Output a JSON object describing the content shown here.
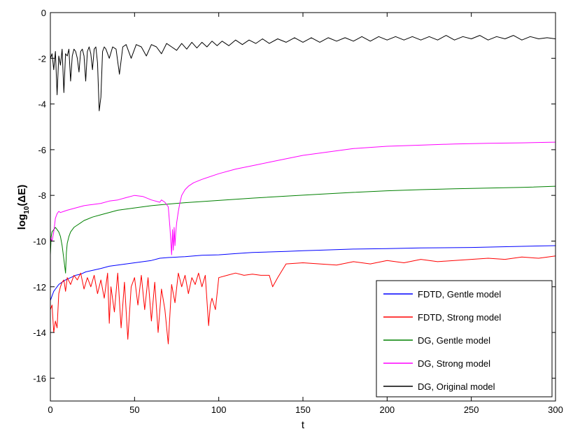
{
  "chart_data": {
    "type": "line",
    "title": "",
    "xlabel": "t",
    "ylabel_main": "log",
    "ylabel_sub": "10",
    "ylabel_paren": "(ΔE)",
    "xlim": [
      0,
      300
    ],
    "ylim": [
      -17,
      0
    ],
    "xticks": [
      0,
      50,
      100,
      150,
      200,
      250,
      300
    ],
    "yticks": [
      0,
      -2,
      -4,
      -6,
      -8,
      -10,
      -12,
      -14,
      -16
    ],
    "grid": false,
    "legend_position": "bottom-right",
    "series": [
      {
        "name": "FDTD, Gentle model",
        "color": "#0000ff",
        "x": [
          0,
          1,
          2,
          3,
          4,
          5,
          7,
          9,
          12,
          15,
          18,
          21,
          24,
          27,
          30,
          35,
          40,
          45,
          50,
          60,
          65,
          70,
          80,
          90,
          100,
          110,
          120,
          140,
          150,
          160,
          180,
          200,
          220,
          250,
          280,
          300
        ],
        "y": [
          -12.6,
          -12.4,
          -12.2,
          -12.1,
          -12.0,
          -11.9,
          -11.8,
          -11.7,
          -11.6,
          -11.5,
          -11.45,
          -11.35,
          -11.3,
          -11.25,
          -11.2,
          -11.1,
          -11.05,
          -11.0,
          -10.95,
          -10.85,
          -10.75,
          -10.72,
          -10.68,
          -10.62,
          -10.6,
          -10.55,
          -10.5,
          -10.45,
          -10.42,
          -10.4,
          -10.35,
          -10.33,
          -10.3,
          -10.28,
          -10.23,
          -10.2
        ]
      },
      {
        "name": "FDTD, Strong model",
        "color": "#ff0000",
        "x": [
          0,
          1,
          2,
          3,
          4,
          5,
          6,
          7,
          8,
          9,
          10,
          12,
          14,
          16,
          18,
          20,
          22,
          24,
          26,
          28,
          30,
          32,
          34,
          35,
          36,
          38,
          40,
          42,
          44,
          46,
          48,
          50,
          52,
          54,
          56,
          58,
          60,
          62,
          64,
          66,
          68,
          70,
          72,
          74,
          76,
          78,
          80,
          82,
          84,
          86,
          88,
          90,
          92,
          94,
          95,
          96,
          98,
          100,
          105,
          110,
          115,
          120,
          125,
          130,
          132,
          135,
          140,
          150,
          160,
          170,
          180,
          190,
          200,
          210,
          220,
          230,
          240,
          250,
          260,
          270,
          280,
          290,
          300
        ],
        "y": [
          -13.0,
          -12.8,
          -14.0,
          -13.5,
          -13.8,
          -12.3,
          -12.0,
          -11.8,
          -11.7,
          -12.2,
          -11.6,
          -11.9,
          -11.5,
          -11.7,
          -11.4,
          -12.1,
          -11.6,
          -12.0,
          -11.5,
          -12.3,
          -11.7,
          -12.5,
          -11.4,
          -13.6,
          -12.0,
          -13.1,
          -11.4,
          -13.8,
          -11.8,
          -14.3,
          -12.0,
          -11.6,
          -12.8,
          -11.5,
          -13.0,
          -11.6,
          -13.5,
          -11.8,
          -14.0,
          -12.1,
          -13.0,
          -14.5,
          -11.9,
          -12.7,
          -11.4,
          -12.0,
          -11.5,
          -12.3,
          -11.6,
          -11.9,
          -11.4,
          -12.0,
          -11.5,
          -13.7,
          -12.8,
          -12.5,
          -13.0,
          -11.6,
          -11.5,
          -11.4,
          -11.5,
          -11.45,
          -11.5,
          -11.5,
          -12.0,
          -11.6,
          -11.0,
          -10.95,
          -11.0,
          -11.05,
          -10.9,
          -11.0,
          -10.85,
          -10.95,
          -10.8,
          -10.9,
          -10.85,
          -10.8,
          -10.75,
          -10.8,
          -10.7,
          -10.75,
          -10.65
        ]
      },
      {
        "name": "DG, Gentle model",
        "color": "#008000",
        "x": [
          0,
          0.5,
          1,
          2,
          3,
          4,
          5,
          6,
          7,
          8,
          9,
          9.5,
          10,
          11,
          12,
          14,
          16,
          18,
          20,
          25,
          30,
          40,
          50,
          60,
          70,
          80,
          90,
          100,
          120,
          140,
          160,
          180,
          200,
          220,
          240,
          260,
          280,
          300
        ],
        "y": [
          -10.6,
          -9.8,
          -9.6,
          -9.5,
          -9.4,
          -9.5,
          -9.6,
          -9.8,
          -10.2,
          -10.8,
          -11.4,
          -10.5,
          -10.1,
          -9.8,
          -9.6,
          -9.4,
          -9.3,
          -9.2,
          -9.1,
          -8.95,
          -8.85,
          -8.65,
          -8.55,
          -8.45,
          -8.38,
          -8.32,
          -8.27,
          -8.22,
          -8.12,
          -8.03,
          -7.95,
          -7.87,
          -7.8,
          -7.75,
          -7.71,
          -7.68,
          -7.65,
          -7.6
        ]
      },
      {
        "name": "DG, Strong model",
        "color": "#ff00ff",
        "x": [
          0,
          1,
          2,
          3,
          4,
          5,
          6,
          8,
          10,
          15,
          20,
          25,
          30,
          35,
          40,
          45,
          50,
          55,
          60,
          65,
          66,
          68,
          70,
          71,
          72,
          72.5,
          73,
          73.5,
          74,
          74.5,
          75,
          76,
          77,
          78,
          80,
          82,
          85,
          90,
          100,
          110,
          120,
          130,
          140,
          150,
          160,
          170,
          180,
          190,
          200,
          220,
          240,
          260,
          280,
          300
        ],
        "y": [
          -9.8,
          -10.0,
          -9.6,
          -9.0,
          -8.8,
          -8.7,
          -8.75,
          -8.7,
          -8.65,
          -8.55,
          -8.45,
          -8.4,
          -8.35,
          -8.25,
          -8.2,
          -8.1,
          -8.0,
          -8.05,
          -8.2,
          -8.3,
          -8.2,
          -8.3,
          -8.5,
          -9.4,
          -10.6,
          -9.5,
          -10.4,
          -9.4,
          -10.2,
          -9.6,
          -9.2,
          -8.7,
          -8.3,
          -8.0,
          -7.75,
          -7.6,
          -7.45,
          -7.3,
          -7.05,
          -6.85,
          -6.7,
          -6.55,
          -6.4,
          -6.25,
          -6.15,
          -6.05,
          -5.95,
          -5.9,
          -5.85,
          -5.8,
          -5.75,
          -5.72,
          -5.7,
          -5.67
        ]
      },
      {
        "name": "DG, Original model",
        "color": "#000000",
        "x": [
          0,
          1,
          2,
          3,
          4,
          5,
          6,
          7,
          8,
          9,
          10,
          11,
          12,
          13,
          14,
          15,
          16,
          17,
          18,
          19,
          20,
          21,
          22,
          23,
          24,
          25,
          26,
          27,
          28,
          29,
          30,
          31,
          32,
          33,
          35,
          37,
          39,
          41,
          43,
          45,
          48,
          51,
          54,
          57,
          60,
          63,
          66,
          69,
          72,
          75,
          78,
          81,
          84,
          87,
          90,
          93,
          96,
          99,
          102,
          106,
          110,
          114,
          118,
          122,
          126,
          130,
          135,
          140,
          145,
          150,
          155,
          160,
          165,
          170,
          175,
          180,
          185,
          190,
          195,
          200,
          205,
          210,
          215,
          220,
          225,
          230,
          235,
          240,
          245,
          250,
          255,
          260,
          265,
          270,
          275,
          280,
          285,
          290,
          295,
          300
        ],
        "y": [
          -2.0,
          -1.8,
          -2.5,
          -1.7,
          -3.6,
          -1.9,
          -2.3,
          -1.6,
          -3.5,
          -1.8,
          -1.9,
          -1.6,
          -3.0,
          -1.9,
          -1.6,
          -1.7,
          -2.0,
          -2.6,
          -1.7,
          -1.6,
          -1.9,
          -3.0,
          -1.7,
          -1.5,
          -1.8,
          -2.5,
          -1.6,
          -1.5,
          -2.2,
          -4.3,
          -3.7,
          -1.7,
          -1.5,
          -1.6,
          -2.0,
          -1.5,
          -1.6,
          -2.7,
          -1.5,
          -1.4,
          -2.0,
          -1.4,
          -1.5,
          -1.9,
          -1.4,
          -1.5,
          -1.8,
          -1.35,
          -1.5,
          -1.65,
          -1.35,
          -1.6,
          -1.3,
          -1.55,
          -1.3,
          -1.5,
          -1.25,
          -1.45,
          -1.25,
          -1.45,
          -1.2,
          -1.4,
          -1.2,
          -1.35,
          -1.15,
          -1.35,
          -1.15,
          -1.3,
          -1.1,
          -1.3,
          -1.1,
          -1.3,
          -1.1,
          -1.25,
          -1.1,
          -1.25,
          -1.05,
          -1.25,
          -1.05,
          -1.2,
          -1.05,
          -1.2,
          -1.05,
          -1.2,
          -1.05,
          -1.2,
          -1.0,
          -1.2,
          -1.05,
          -1.15,
          -1.0,
          -1.2,
          -1.05,
          -1.15,
          -1.0,
          -1.2,
          -1.05,
          -1.15,
          -1.1,
          -1.15
        ]
      }
    ]
  }
}
